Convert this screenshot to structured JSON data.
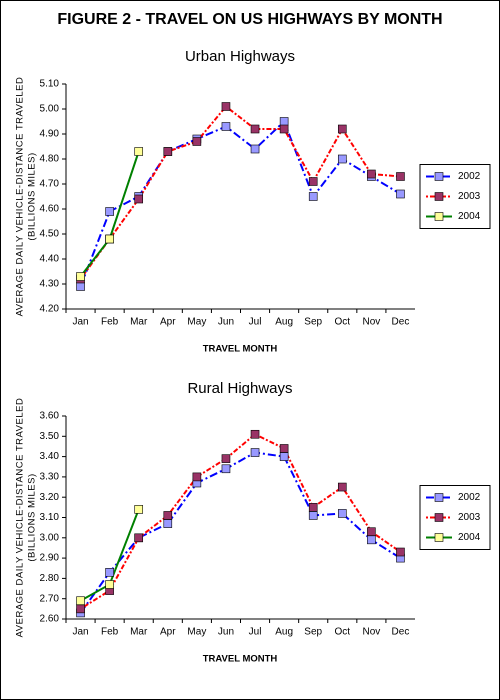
{
  "title": "FIGURE 2 - TRAVEL ON US HIGHWAYS BY MONTH",
  "chart_data": [
    {
      "type": "line",
      "title": "Urban Highways",
      "xlabel": "TRAVEL MONTH",
      "ylabel": [
        "AVERAGE DAILY VEHICLE-DISTANCE TRAVELED",
        "(BILLIONS MILES)"
      ],
      "categories": [
        "Jan",
        "Feb",
        "Mar",
        "Apr",
        "May",
        "Jun",
        "Jul",
        "Aug",
        "Sep",
        "Oct",
        "Nov",
        "Dec"
      ],
      "series": [
        {
          "name": "2002",
          "color": "#0000ff",
          "marker_color": "#9999ff",
          "linestyle": "dash-dot",
          "values": [
            4.29,
            4.59,
            4.65,
            4.83,
            4.88,
            4.93,
            4.84,
            4.95,
            4.65,
            4.8,
            4.73,
            4.66
          ]
        },
        {
          "name": "2003",
          "color": "#ff0000",
          "marker_color": "#993366",
          "linestyle": "dot-dash",
          "values": [
            4.32,
            4.48,
            4.64,
            4.83,
            4.87,
            5.01,
            4.92,
            4.92,
            4.71,
            4.92,
            4.74,
            4.73
          ]
        },
        {
          "name": "2004",
          "color": "#008000",
          "marker_color": "#ffff99",
          "linestyle": "solid",
          "values": [
            4.33,
            4.48,
            4.83,
            null,
            null,
            null,
            null,
            null,
            null,
            null,
            null,
            null
          ]
        }
      ],
      "ylim": [
        4.2,
        5.1
      ],
      "yticks": [
        {
          "value": 4.2,
          "label": "4.20"
        },
        {
          "value": 4.3,
          "label": "4.30"
        },
        {
          "value": 4.4,
          "label": "4.40"
        },
        {
          "value": 4.5,
          "label": "4.50"
        },
        {
          "value": 4.6,
          "label": "4.60"
        },
        {
          "value": 4.7,
          "label": "4.70"
        },
        {
          "value": 4.8,
          "label": "4.80"
        },
        {
          "value": 4.9,
          "label": "4.90"
        },
        {
          "value": 5.0,
          "label": "5.00"
        },
        {
          "value": 5.1,
          "label": "5.10"
        }
      ],
      "grid": false,
      "legend": "right"
    },
    {
      "type": "line",
      "title": "Rural Highways",
      "xlabel": "TRAVEL MONTH",
      "ylabel": [
        "AVERAGE DAILY VEHICLE-DISTANCE TRAVELED",
        "(BILLIONS MILES)"
      ],
      "categories": [
        "Jan",
        "Feb",
        "Mar",
        "Apr",
        "May",
        "Jun",
        "Jul",
        "Aug",
        "Sep",
        "Oct",
        "Nov",
        "Dec"
      ],
      "series": [
        {
          "name": "2002",
          "color": "#0000ff",
          "marker_color": "#9999ff",
          "linestyle": "dash-dot",
          "values": [
            2.63,
            2.83,
            3.0,
            3.07,
            3.27,
            3.34,
            3.42,
            3.4,
            3.11,
            3.12,
            2.99,
            2.9
          ]
        },
        {
          "name": "2003",
          "color": "#ff0000",
          "marker_color": "#993366",
          "linestyle": "dot-dash",
          "values": [
            2.65,
            2.74,
            3.0,
            3.11,
            3.3,
            3.39,
            3.51,
            3.44,
            3.15,
            3.25,
            3.03,
            2.93
          ]
        },
        {
          "name": "2004",
          "color": "#008000",
          "marker_color": "#ffff99",
          "linestyle": "solid",
          "values": [
            2.69,
            2.77,
            3.14,
            null,
            null,
            null,
            null,
            null,
            null,
            null,
            null,
            null
          ]
        }
      ],
      "ylim": [
        2.6,
        3.6
      ],
      "yticks": [
        {
          "value": 2.6,
          "label": "2.60"
        },
        {
          "value": 2.7,
          "label": "2.70"
        },
        {
          "value": 2.8,
          "label": "2.80"
        },
        {
          "value": 2.9,
          "label": "2.90"
        },
        {
          "value": 3.0,
          "label": "3.00"
        },
        {
          "value": 3.1,
          "label": "3.10"
        },
        {
          "value": 3.2,
          "label": "3.20"
        },
        {
          "value": 3.3,
          "label": "3.30"
        },
        {
          "value": 3.4,
          "label": "3.40"
        },
        {
          "value": 3.5,
          "label": "3.50"
        },
        {
          "value": 3.6,
          "label": "3.60"
        }
      ],
      "grid": false,
      "legend": "right"
    }
  ]
}
